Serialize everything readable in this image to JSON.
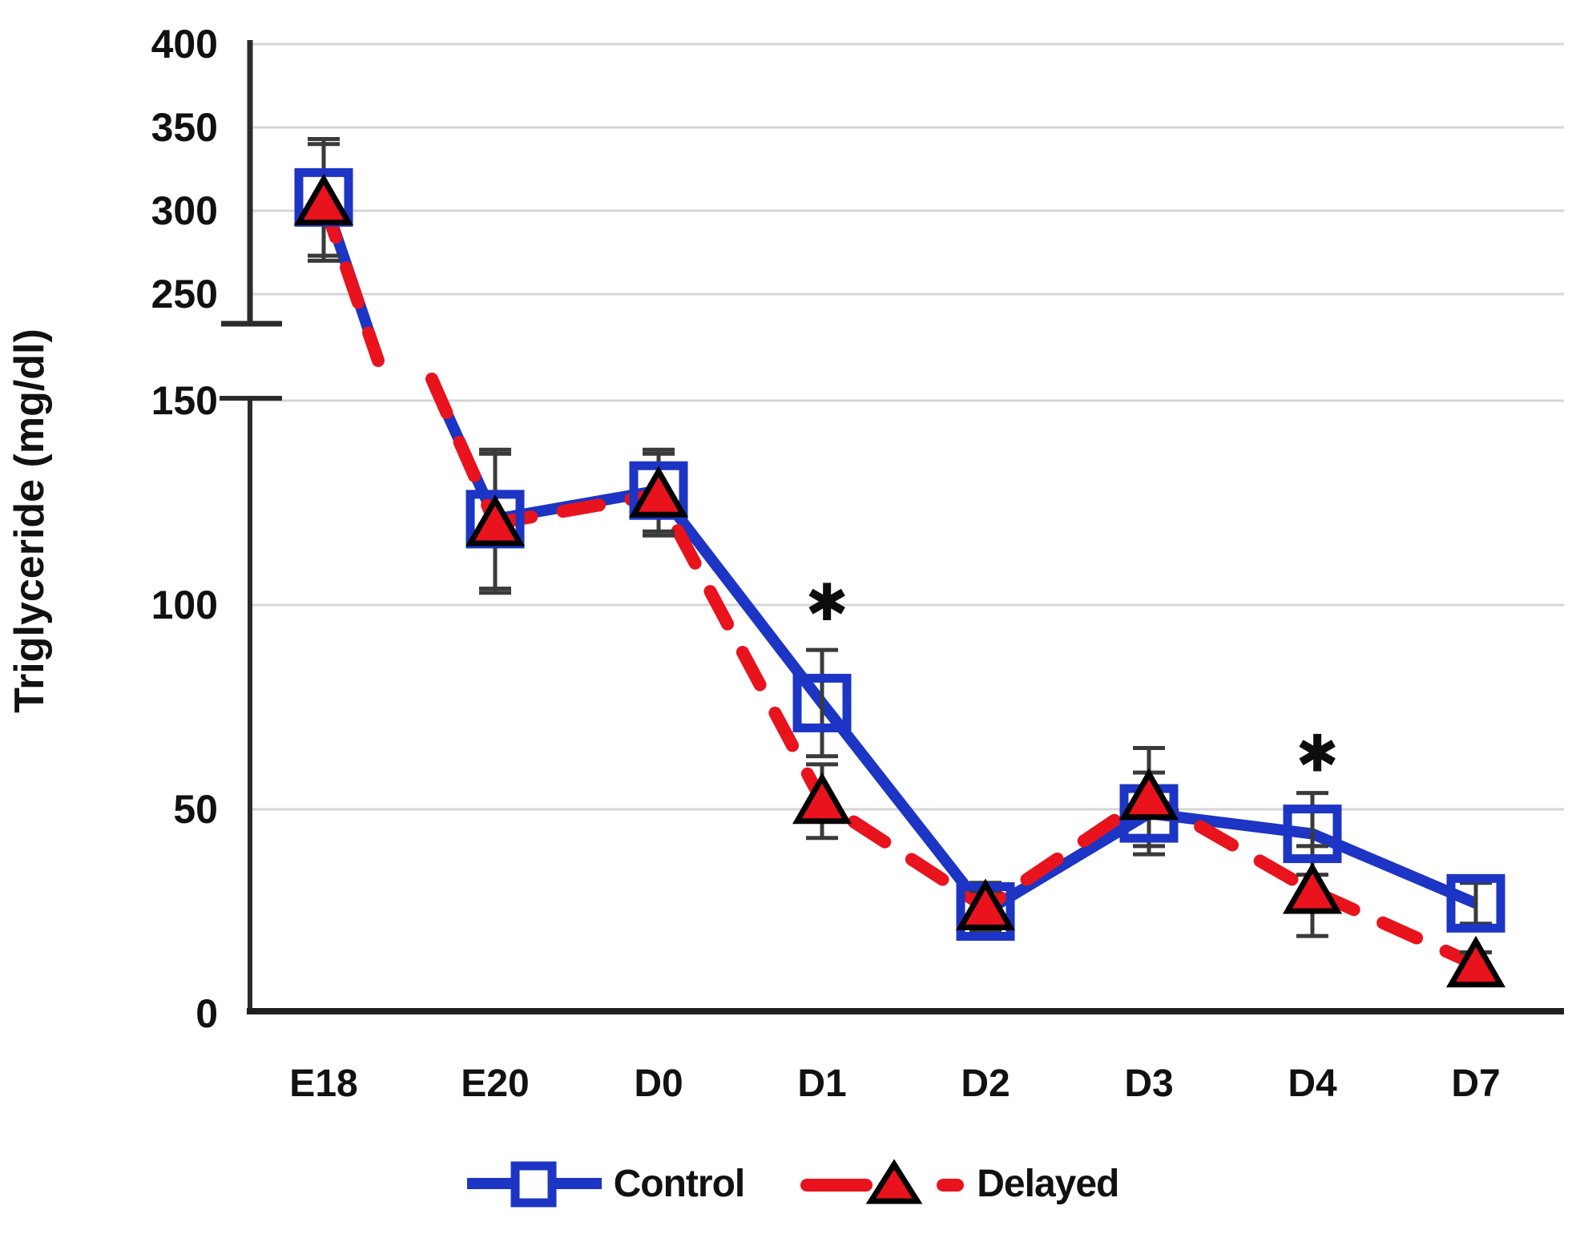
{
  "chart_data": {
    "type": "line",
    "title": "",
    "ylabel": "Triglyceride (mg/dl)",
    "xlabel": "",
    "categories": [
      "E18",
      "E20",
      "D0",
      "D1",
      "D2",
      "D3",
      "D4",
      "D7"
    ],
    "axis_break": true,
    "top_axis_ticks": [
      400,
      350,
      300,
      250
    ],
    "bottom_axis_ticks": [
      150,
      100,
      50,
      0
    ],
    "top_axis_range": [
      229,
      400
    ],
    "bottom_axis_range": [
      0,
      150
    ],
    "grid": true,
    "legend_position": "bottom",
    "series": [
      {
        "name": "Control",
        "marker": "open-square",
        "line_style": "solid",
        "color": "#1c35c4",
        "values": [
          308,
          121,
          128,
          76,
          25,
          49,
          44,
          27
        ],
        "errors": [
          35,
          17,
          10,
          13,
          5,
          10,
          10,
          5
        ]
      },
      {
        "name": "Delayed",
        "marker": "filled-triangle",
        "line_style": "dashed",
        "color": "#e8131d",
        "values": [
          305,
          120,
          127,
          52,
          26,
          53,
          30,
          12
        ],
        "errors": [
          35,
          17,
          10,
          9,
          6,
          12,
          11,
          3
        ]
      }
    ],
    "annotations": [
      {
        "text": "✱",
        "category": "D1",
        "value": 101
      },
      {
        "text": "✱",
        "category": "D4",
        "value": 64
      }
    ],
    "colors": {
      "grid": "#d6d6d6",
      "axis": "#2b2b2b",
      "error_bar": "#3a3a3a",
      "text": "#111111",
      "triangle_outline": "#000000"
    }
  },
  "legend": {
    "control_label": "Control",
    "delayed_label": "Delayed"
  }
}
